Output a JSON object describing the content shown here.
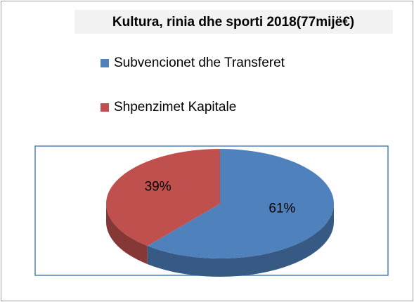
{
  "chart_data": {
    "type": "pie",
    "title": "Kultura, rinia dhe sporti 2018(77mijë€)",
    "categories": [
      "Subvencionet dhe Transferet",
      "Shpenzimet Kapitale"
    ],
    "values": [
      61,
      39
    ],
    "value_labels": [
      "61%",
      "39%"
    ],
    "colors": [
      "#4f81bd",
      "#c0504d"
    ],
    "legend": "top"
  }
}
